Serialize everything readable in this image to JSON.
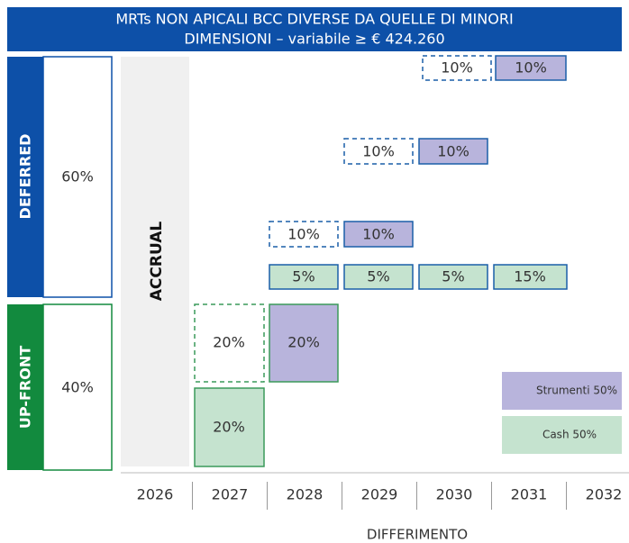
{
  "header": {
    "title_lines": [
      "MRTs NON APICALI BCC DIVERSE DA QUELLE DI MINORI",
      "DIMENSIONI  – variabile ≥ € 424.260"
    ]
  },
  "sections": [
    {
      "label": "DEFERRED",
      "share": "60%"
    },
    {
      "label": "UP-FRONT",
      "share": "40%"
    }
  ],
  "accrual": "ACCRUAL",
  "boxes": [
    "20%",
    "20%",
    "20%",
    "5%",
    "5%",
    "5%",
    "15%",
    "10%",
    "10%",
    "10%",
    "10%",
    "10%",
    "10%"
  ],
  "years": [
    "2026",
    "2027",
    "2028",
    "2029",
    "2030",
    "2031",
    "2032"
  ],
  "axis_label": "DIFFERIMENTO",
  "legend": [
    "Strumenti 50%",
    "Cash 50%"
  ]
}
